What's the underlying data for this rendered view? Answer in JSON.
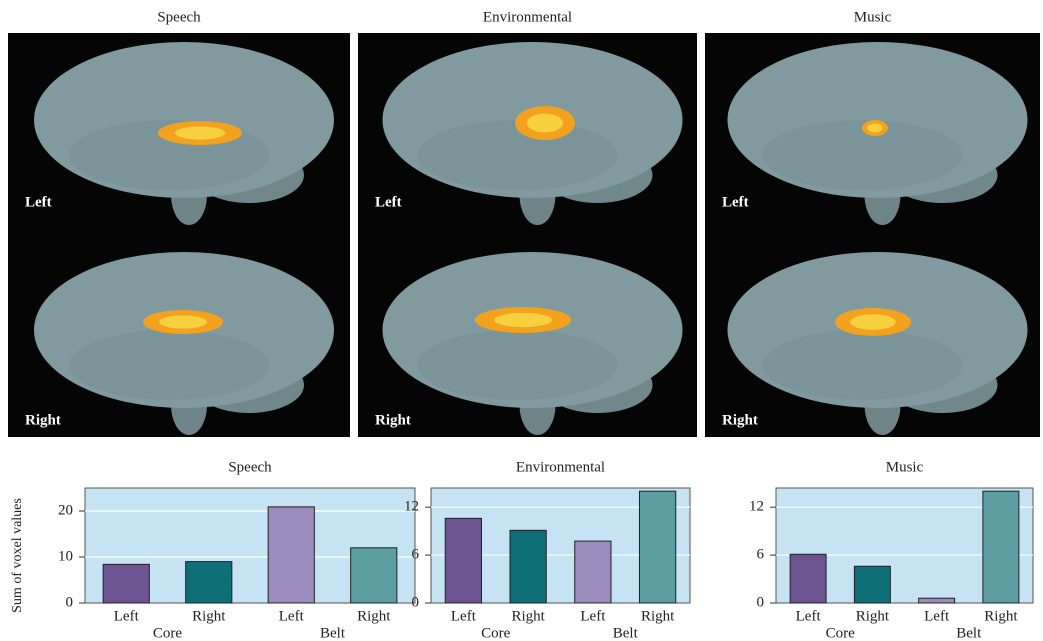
{
  "images": {
    "titles": [
      "Speech",
      "Environmental",
      "Music"
    ],
    "labels": [
      "Left",
      "Right"
    ]
  },
  "chart_data": [
    {
      "type": "bar",
      "title": "Speech",
      "ylabel": "Sum of voxel values",
      "categories": [
        "Left",
        "Right",
        "Left",
        "Right"
      ],
      "groups": [
        "Core",
        "Belt"
      ],
      "values": [
        8.4,
        9.0,
        20.9,
        12.0
      ],
      "colors": [
        "#6c5493",
        "#0f6f76",
        "#9a8cbd",
        "#5c9ea2"
      ],
      "ylim": [
        0,
        25
      ],
      "yticks": [
        0,
        10,
        20
      ],
      "grid": true
    },
    {
      "type": "bar",
      "title": "Environmental",
      "categories": [
        "Left",
        "Right",
        "Left",
        "Right"
      ],
      "groups": [
        "Core",
        "Belt"
      ],
      "values": [
        10.6,
        9.1,
        7.75,
        14.0
      ],
      "colors": [
        "#6c5493",
        "#0f6f76",
        "#9a8cbd",
        "#5c9ea2"
      ],
      "ylim": [
        0,
        14.4
      ],
      "yticks": [
        0,
        6,
        12
      ],
      "grid": true
    },
    {
      "type": "bar",
      "title": "Music",
      "categories": [
        "Left",
        "Right",
        "Left",
        "Right"
      ],
      "groups": [
        "Core",
        "Belt"
      ],
      "values": [
        6.1,
        4.6,
        0.6,
        14.0
      ],
      "colors": [
        "#6c5493",
        "#0f6f76",
        "#9a8cbd",
        "#5c9ea2"
      ],
      "ylim": [
        0,
        14.4
      ],
      "yticks": [
        0,
        6,
        12
      ],
      "grid": true
    }
  ]
}
